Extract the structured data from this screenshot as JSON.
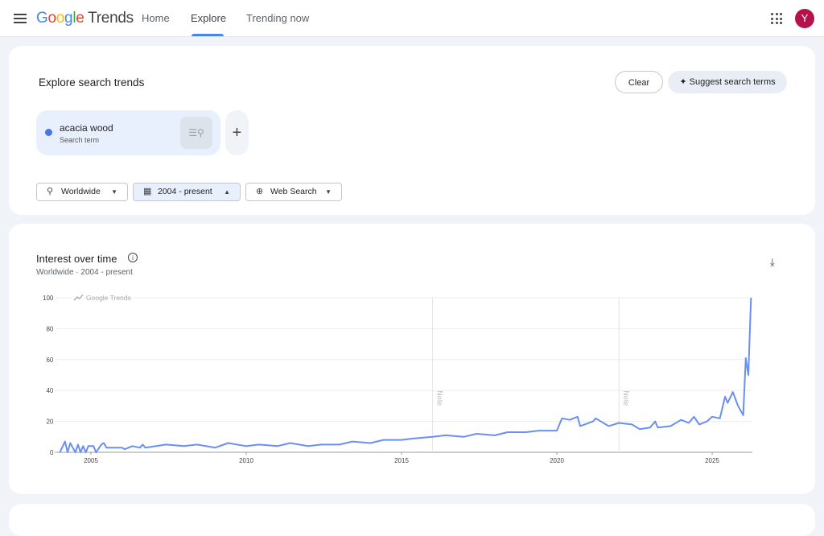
{
  "header": {
    "logo_google": "Google",
    "logo_trends": "Trends",
    "nav": [
      "Home",
      "Explore",
      "Trending now"
    ],
    "active_nav": "Explore",
    "avatar_letter": "Y",
    "icons": [
      "menu-icon",
      "apps-icon"
    ]
  },
  "explore": {
    "title": "Explore search trends",
    "clear": "Clear",
    "suggest": "Suggest search terms",
    "term": {
      "name": "acacia wood",
      "type": "Search term",
      "color": "#4a73e8"
    },
    "filters": {
      "location": "Worldwide",
      "time": "2004 - present",
      "property": "Web Search"
    }
  },
  "interest": {
    "title": "Interest over time",
    "subtitle": "Worldwide · 2004 - present",
    "watermark": "Google Trends",
    "note": "Note"
  },
  "chart_data": {
    "type": "line",
    "title": "Interest over time",
    "ylim": [
      0,
      100
    ],
    "yticks": [
      0,
      20,
      40,
      60,
      80,
      100
    ],
    "xticks": [
      "2005",
      "2010",
      "2015",
      "2020",
      "2025"
    ],
    "grid": true,
    "line_color": "#6b8ff0",
    "notes": [
      "2016-01",
      "2022-01"
    ],
    "series": [
      {
        "name": "acacia wood",
        "points": [
          [
            "2004-01",
            0
          ],
          [
            "2004-03",
            7
          ],
          [
            "2004-04",
            0
          ],
          [
            "2004-05",
            6
          ],
          [
            "2004-07",
            0
          ],
          [
            "2004-08",
            5
          ],
          [
            "2004-09",
            0
          ],
          [
            "2004-10",
            4
          ],
          [
            "2004-11",
            0
          ],
          [
            "2004-12",
            4
          ],
          [
            "2005-02",
            4
          ],
          [
            "2005-03",
            0
          ],
          [
            "2005-05",
            5
          ],
          [
            "2005-06",
            6
          ],
          [
            "2005-07",
            3
          ],
          [
            "2006-01",
            3
          ],
          [
            "2006-02",
            2
          ],
          [
            "2006-05",
            4
          ],
          [
            "2006-08",
            3
          ],
          [
            "2006-09",
            5
          ],
          [
            "2006-10",
            3
          ],
          [
            "2007-06",
            5
          ],
          [
            "2008-01",
            4
          ],
          [
            "2008-06",
            5
          ],
          [
            "2009-01",
            3
          ],
          [
            "2009-06",
            6
          ],
          [
            "2010-01",
            4
          ],
          [
            "2010-06",
            5
          ],
          [
            "2011-01",
            4
          ],
          [
            "2011-06",
            6
          ],
          [
            "2012-01",
            4
          ],
          [
            "2012-06",
            5
          ],
          [
            "2013-01",
            5
          ],
          [
            "2013-06",
            7
          ],
          [
            "2014-01",
            6
          ],
          [
            "2014-06",
            8
          ],
          [
            "2015-01",
            8
          ],
          [
            "2015-06",
            9
          ],
          [
            "2016-01",
            10
          ],
          [
            "2016-06",
            11
          ],
          [
            "2017-01",
            10
          ],
          [
            "2017-06",
            12
          ],
          [
            "2018-01",
            11
          ],
          [
            "2018-06",
            13
          ],
          [
            "2019-01",
            13
          ],
          [
            "2019-06",
            14
          ],
          [
            "2020-01",
            14
          ],
          [
            "2020-03",
            22
          ],
          [
            "2020-06",
            21
          ],
          [
            "2020-09",
            23
          ],
          [
            "2020-10",
            17
          ],
          [
            "2021-03",
            20
          ],
          [
            "2021-04",
            22
          ],
          [
            "2021-09",
            17
          ],
          [
            "2022-01",
            19
          ],
          [
            "2022-06",
            18
          ],
          [
            "2022-09",
            15
          ],
          [
            "2023-01",
            16
          ],
          [
            "2023-03",
            20
          ],
          [
            "2023-04",
            16
          ],
          [
            "2023-09",
            17
          ],
          [
            "2024-01",
            21
          ],
          [
            "2024-04",
            19
          ],
          [
            "2024-06",
            23
          ],
          [
            "2024-08",
            18
          ],
          [
            "2024-11",
            20
          ],
          [
            "2025-01",
            23
          ],
          [
            "2025-04",
            22
          ],
          [
            "2025-06",
            36
          ],
          [
            "2025-07",
            32
          ],
          [
            "2025-09",
            39
          ],
          [
            "2025-11",
            30
          ],
          [
            "2026-01",
            24
          ],
          [
            "2026-02",
            61
          ],
          [
            "2026-03",
            50
          ],
          [
            "2026-04",
            100
          ]
        ]
      }
    ]
  }
}
